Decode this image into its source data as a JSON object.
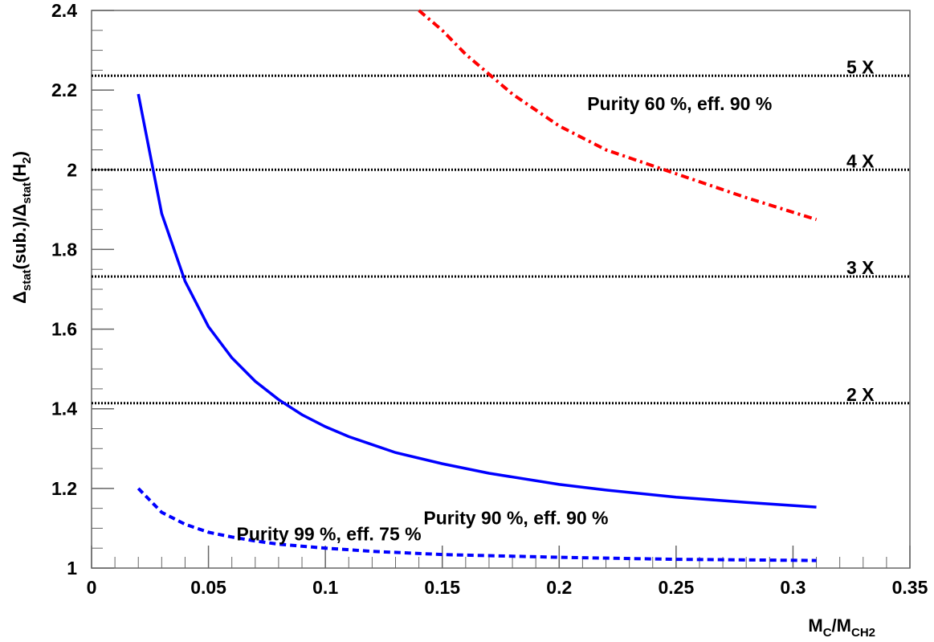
{
  "chart_data": {
    "type": "line",
    "title": "",
    "xlabel": {
      "main": "M",
      "sub1": "C",
      "sep": "/M",
      "sub2": "CH2"
    },
    "ylabel": {
      "p1": "Δ",
      "s1": "stat",
      "p2": "(sub.)/Δ",
      "s2": "stat",
      "p3": "(H",
      "s3": "2",
      "p4": ")"
    },
    "xlim": [
      0,
      0.35
    ],
    "ylim": [
      1,
      2.4
    ],
    "x_ticks": [
      "0",
      "0.05",
      "0.1",
      "0.15",
      "0.2",
      "0.25",
      "0.3",
      "0.35"
    ],
    "y_ticks": [
      "1",
      "1.2",
      "1.4",
      "1.6",
      "1.8",
      "2",
      "2.2",
      "2.4"
    ],
    "grid": false,
    "reference_lines": [
      {
        "label": "5 X",
        "y": 2.236
      },
      {
        "label": "4 X",
        "y": 2.0
      },
      {
        "label": "3 X",
        "y": 1.732
      },
      {
        "label": "2 X",
        "y": 1.414
      }
    ],
    "series": [
      {
        "name": "Purity 60 %, eff. 90 %",
        "color": "#ff0000",
        "style": "dash-dot",
        "x": [
          0.14,
          0.15,
          0.16,
          0.17,
          0.18,
          0.2,
          0.22,
          0.25,
          0.28,
          0.31
        ],
        "y": [
          2.4,
          2.35,
          2.29,
          2.24,
          2.19,
          2.11,
          2.05,
          1.99,
          1.93,
          1.875
        ]
      },
      {
        "name": "Purity 90 %, eff. 90 %",
        "color": "#0000ff",
        "style": "solid",
        "x": [
          0.02,
          0.03,
          0.04,
          0.05,
          0.06,
          0.07,
          0.08,
          0.09,
          0.1,
          0.11,
          0.12,
          0.13,
          0.15,
          0.17,
          0.2,
          0.22,
          0.25,
          0.28,
          0.31
        ],
        "y": [
          2.19,
          1.89,
          1.72,
          1.606,
          1.528,
          1.469,
          1.423,
          1.385,
          1.355,
          1.33,
          1.31,
          1.29,
          1.262,
          1.238,
          1.21,
          1.196,
          1.178,
          1.165,
          1.153
        ]
      },
      {
        "name": "Purity 99 %, eff. 75 %",
        "color": "#0000ff",
        "style": "dashed",
        "x": [
          0.02,
          0.03,
          0.04,
          0.05,
          0.06,
          0.07,
          0.08,
          0.1,
          0.12,
          0.15,
          0.2,
          0.25,
          0.31
        ],
        "y": [
          1.2,
          1.14,
          1.11,
          1.09,
          1.078,
          1.068,
          1.06,
          1.05,
          1.042,
          1.034,
          1.027,
          1.022,
          1.019
        ]
      }
    ],
    "annotations": [
      {
        "text": "Purity 60 %, eff. 90 %",
        "x": 0.212,
        "y": 2.15
      },
      {
        "text": "Purity 90 %, eff. 90 %",
        "x": 0.142,
        "y": 1.11
      },
      {
        "text": "Purity 99 %, eff. 75 %",
        "x": 0.062,
        "y": 1.07
      }
    ]
  }
}
